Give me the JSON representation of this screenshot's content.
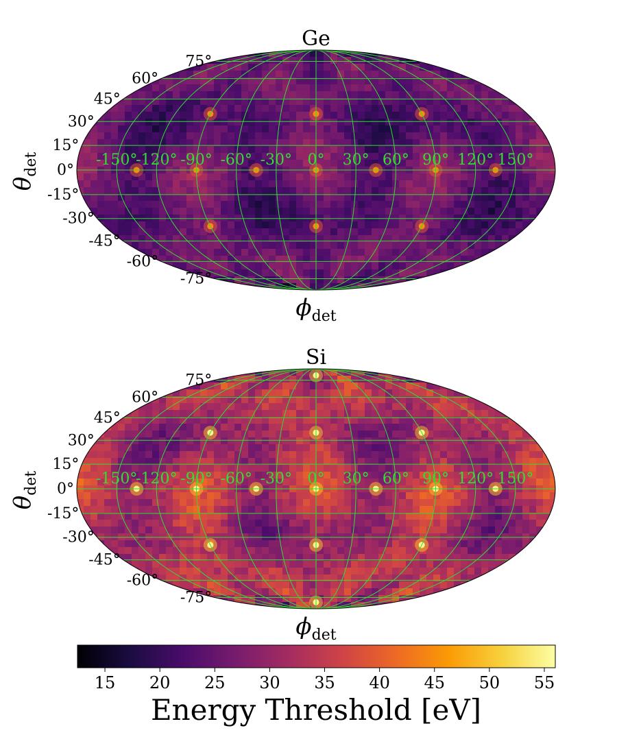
{
  "chart_data": [
    {
      "type": "heatmap",
      "projection": "mollweide",
      "title": "Ge",
      "xlabel_main": "ϕ",
      "xlabel_sub": "det",
      "ylabel_main": "θ",
      "ylabel_sub": "det",
      "lon_tick_labels": [
        "-150°",
        "-120°",
        "-90°",
        "-60°",
        "-30°",
        "0°",
        "30°",
        "60°",
        "90°",
        "120°",
        "150°"
      ],
      "lon_ticks": [
        -150,
        -120,
        -90,
        -60,
        -30,
        0,
        30,
        60,
        90,
        120,
        150
      ],
      "lat_tick_labels": [
        "75°",
        "60°",
        "45°",
        "30°",
        "15°",
        "0°",
        "-15°",
        "-30°",
        "-45°",
        "-60°",
        "-75°"
      ],
      "lat_ticks": [
        75,
        60,
        45,
        30,
        15,
        0,
        -15,
        -30,
        -45,
        -60,
        -75
      ],
      "grid": true,
      "grid_color": "#33dd33",
      "hotspots": [
        {
          "lon": -135,
          "lat": 0
        },
        {
          "lon": -90,
          "lat": 0
        },
        {
          "lon": -45,
          "lat": 0
        },
        {
          "lon": 0,
          "lat": 0
        },
        {
          "lon": 45,
          "lat": 0
        },
        {
          "lon": 90,
          "lat": 0
        },
        {
          "lon": 135,
          "lat": 0
        },
        {
          "lon": -90,
          "lat": 35
        },
        {
          "lon": 0,
          "lat": 35
        },
        {
          "lon": 90,
          "lat": 35
        },
        {
          "lon": -90,
          "lat": -35
        },
        {
          "lon": 0,
          "lat": -35
        },
        {
          "lon": 90,
          "lat": -35
        }
      ],
      "mean_value": 24,
      "max_value": 45
    },
    {
      "type": "heatmap",
      "projection": "mollweide",
      "title": "Si",
      "xlabel_main": "ϕ",
      "xlabel_sub": "det",
      "ylabel_main": "θ",
      "ylabel_sub": "det",
      "lon_tick_labels": [
        "-150°",
        "-120°",
        "-90°",
        "-60°",
        "-30°",
        "0°",
        "30°",
        "60°",
        "90°",
        "120°",
        "150°"
      ],
      "lon_ticks": [
        -150,
        -120,
        -90,
        -60,
        -30,
        0,
        30,
        60,
        90,
        120,
        150
      ],
      "lat_tick_labels": [
        "75°",
        "60°",
        "45°",
        "30°",
        "15°",
        "0°",
        "-15°",
        "-30°",
        "-45°",
        "-60°",
        "-75°"
      ],
      "lat_ticks": [
        75,
        60,
        45,
        30,
        15,
        0,
        -15,
        -30,
        -45,
        -60,
        -75
      ],
      "grid": true,
      "grid_color": "#33dd33",
      "hotspots": [
        {
          "lon": -135,
          "lat": 0
        },
        {
          "lon": -90,
          "lat": 0
        },
        {
          "lon": -45,
          "lat": 0
        },
        {
          "lon": 0,
          "lat": 0
        },
        {
          "lon": 45,
          "lat": 0
        },
        {
          "lon": 90,
          "lat": 0
        },
        {
          "lon": 135,
          "lat": 0
        },
        {
          "lon": -90,
          "lat": 35
        },
        {
          "lon": 0,
          "lat": 35
        },
        {
          "lon": 90,
          "lat": 35
        },
        {
          "lon": -90,
          "lat": -35
        },
        {
          "lon": 0,
          "lat": -35
        },
        {
          "lon": 90,
          "lat": -35
        },
        {
          "lon": 0,
          "lat": 80
        },
        {
          "lon": 0,
          "lat": -80
        }
      ],
      "mean_value": 30,
      "max_value": 55
    }
  ],
  "colorbar": {
    "label": "Energy Threshold [eV]",
    "min": 12.5,
    "max": 56,
    "ticks": [
      15,
      20,
      25,
      30,
      35,
      40,
      45,
      50,
      55
    ],
    "tick_labels": [
      "15",
      "20",
      "25",
      "30",
      "35",
      "40",
      "45",
      "50",
      "55"
    ],
    "colormap": "inferno",
    "colormap_stops": [
      "#000004",
      "#1b0c41",
      "#4a0c6b",
      "#781c6d",
      "#a52c60",
      "#cf4446",
      "#ed6925",
      "#fb9b06",
      "#f7d13d",
      "#fcffa4"
    ]
  }
}
